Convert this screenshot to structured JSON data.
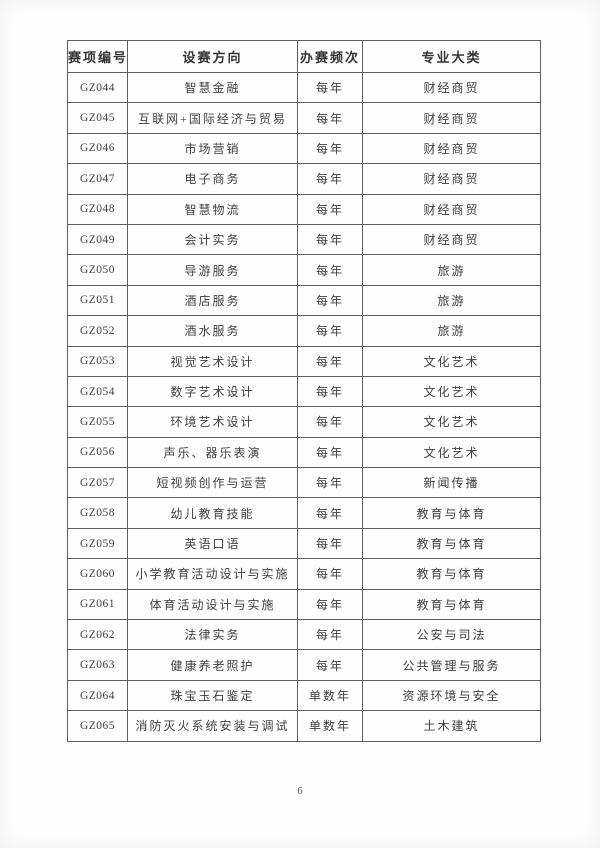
{
  "table": {
    "columns": [
      "赛项编号",
      "设赛方向",
      "办赛频次",
      "专业大类"
    ],
    "rows": [
      {
        "code": "GZ044",
        "direction": "智慧金融",
        "frequency": "每年",
        "category": "财经商贸"
      },
      {
        "code": "GZ045",
        "direction": "互联网+国际经济与贸易",
        "frequency": "每年",
        "category": "财经商贸"
      },
      {
        "code": "GZ046",
        "direction": "市场营销",
        "frequency": "每年",
        "category": "财经商贸"
      },
      {
        "code": "GZ047",
        "direction": "电子商务",
        "frequency": "每年",
        "category": "财经商贸"
      },
      {
        "code": "GZ048",
        "direction": "智慧物流",
        "frequency": "每年",
        "category": "财经商贸"
      },
      {
        "code": "GZ049",
        "direction": "会计实务",
        "frequency": "每年",
        "category": "财经商贸"
      },
      {
        "code": "GZ050",
        "direction": "导游服务",
        "frequency": "每年",
        "category": "旅游"
      },
      {
        "code": "GZ051",
        "direction": "酒店服务",
        "frequency": "每年",
        "category": "旅游"
      },
      {
        "code": "GZ052",
        "direction": "酒水服务",
        "frequency": "每年",
        "category": "旅游"
      },
      {
        "code": "GZ053",
        "direction": "视觉艺术设计",
        "frequency": "每年",
        "category": "文化艺术"
      },
      {
        "code": "GZ054",
        "direction": "数字艺术设计",
        "frequency": "每年",
        "category": "文化艺术"
      },
      {
        "code": "GZ055",
        "direction": "环境艺术设计",
        "frequency": "每年",
        "category": "文化艺术"
      },
      {
        "code": "GZ056",
        "direction": "声乐、器乐表演",
        "frequency": "每年",
        "category": "文化艺术"
      },
      {
        "code": "GZ057",
        "direction": "短视频创作与运营",
        "frequency": "每年",
        "category": "新闻传播"
      },
      {
        "code": "GZ058",
        "direction": "幼儿教育技能",
        "frequency": "每年",
        "category": "教育与体育"
      },
      {
        "code": "GZ059",
        "direction": "英语口语",
        "frequency": "每年",
        "category": "教育与体育"
      },
      {
        "code": "GZ060",
        "direction": "小学教育活动设计与实施",
        "frequency": "每年",
        "category": "教育与体育"
      },
      {
        "code": "GZ061",
        "direction": "体育活动设计与实施",
        "frequency": "每年",
        "category": "教育与体育"
      },
      {
        "code": "GZ062",
        "direction": "法律实务",
        "frequency": "每年",
        "category": "公安与司法"
      },
      {
        "code": "GZ063",
        "direction": "健康养老照护",
        "frequency": "每年",
        "category": "公共管理与服务"
      },
      {
        "code": "GZ064",
        "direction": "珠宝玉石鉴定",
        "frequency": "单数年",
        "category": "资源环境与安全"
      },
      {
        "code": "GZ065",
        "direction": "消防灭火系统安装与调试",
        "frequency": "单数年",
        "category": "土木建筑"
      }
    ]
  },
  "footer": {
    "page_number": "6"
  },
  "colors": {
    "text": "#3b3b3b",
    "border": "#5e5e5e",
    "background": "#fefefe"
  }
}
